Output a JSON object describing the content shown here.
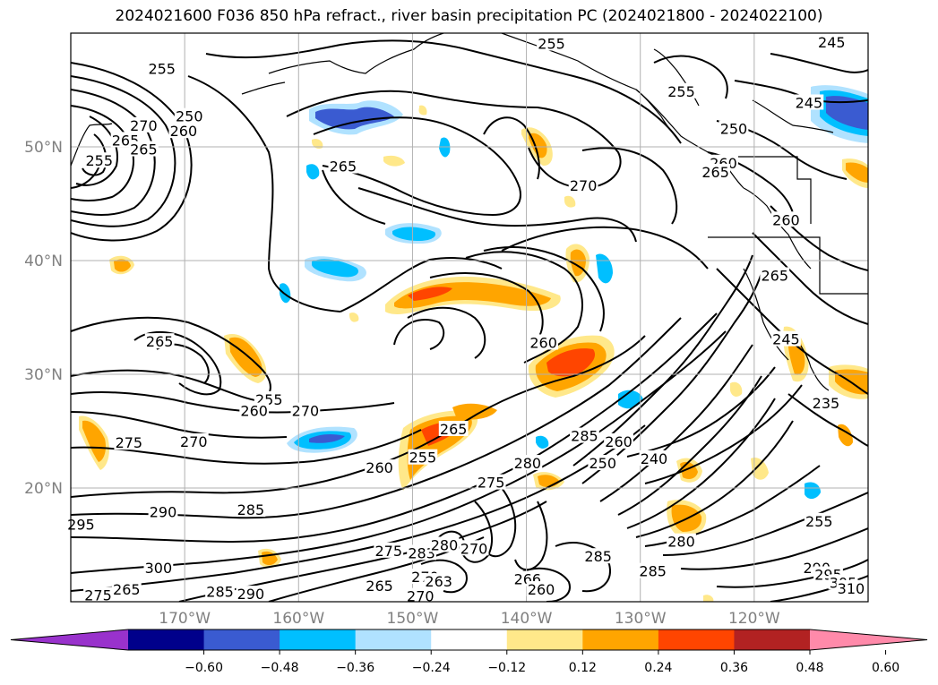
{
  "title": "2024021600 F036 850 hPa refract., river basin precipitation PC (2024021800 - 2024022100)",
  "map": {
    "lon_range": [
      -180,
      -110
    ],
    "lat_range": [
      10,
      60
    ],
    "lat_labels": [
      "50°N",
      "40°N",
      "30°N",
      "20°N"
    ],
    "lat_values": [
      50,
      40,
      30,
      20
    ],
    "lon_labels": [
      "170°W",
      "160°W",
      "150°W",
      "140°W",
      "130°W",
      "120°W"
    ],
    "lon_values": [
      -170,
      -160,
      -150,
      -140,
      -130,
      -120
    ],
    "grid": true
  },
  "contour_labels": [
    {
      "text": "255",
      "lon": -172,
      "lat": 56.9
    },
    {
      "text": "250",
      "lon": -169.6,
      "lat": 52.7
    },
    {
      "text": "270",
      "lon": -173.6,
      "lat": 51.9
    },
    {
      "text": "260",
      "lon": -170.1,
      "lat": 51.4
    },
    {
      "text": "265",
      "lon": -175.2,
      "lat": 50.6
    },
    {
      "text": "265",
      "lon": -173.6,
      "lat": 49.8
    },
    {
      "text": "255",
      "lon": -177.5,
      "lat": 48.8
    },
    {
      "text": "265",
      "lon": -156.1,
      "lat": 48.3
    },
    {
      "text": "270",
      "lon": -135,
      "lat": 46.6
    },
    {
      "text": "255",
      "lon": -137.8,
      "lat": 59.1
    },
    {
      "text": "255",
      "lon": -126.4,
      "lat": 54.9
    },
    {
      "text": "245",
      "lon": -113.2,
      "lat": 59.2
    },
    {
      "text": "245",
      "lon": -115.2,
      "lat": 53.9
    },
    {
      "text": "250",
      "lon": -121.8,
      "lat": 51.6
    },
    {
      "text": "260",
      "lon": -122.7,
      "lat": 48.6
    },
    {
      "text": "265",
      "lon": -123.4,
      "lat": 47.8
    },
    {
      "text": "260",
      "lon": -117.2,
      "lat": 43.6
    },
    {
      "text": "265",
      "lon": -118.2,
      "lat": 38.7
    },
    {
      "text": "245",
      "lon": -117.2,
      "lat": 33.1
    },
    {
      "text": "235",
      "lon": -113.7,
      "lat": 27.5
    },
    {
      "text": "265",
      "lon": -172.2,
      "lat": 32.9
    },
    {
      "text": "255",
      "lon": -162.6,
      "lat": 27.8
    },
    {
      "text": "260",
      "lon": -163.9,
      "lat": 26.8
    },
    {
      "text": "270",
      "lon": -159.4,
      "lat": 26.8
    },
    {
      "text": "275",
      "lon": -174.9,
      "lat": 24
    },
    {
      "text": "270",
      "lon": -169.2,
      "lat": 24.1
    },
    {
      "text": "260",
      "lon": -138.5,
      "lat": 32.8
    },
    {
      "text": "265",
      "lon": -146.4,
      "lat": 25.2
    },
    {
      "text": "255",
      "lon": -149.1,
      "lat": 22.7
    },
    {
      "text": "260",
      "lon": -152.9,
      "lat": 21.8
    },
    {
      "text": "285",
      "lon": -134.9,
      "lat": 24.6
    },
    {
      "text": "260",
      "lon": -131.9,
      "lat": 24.1
    },
    {
      "text": "250",
      "lon": -133.3,
      "lat": 22.2
    },
    {
      "text": "240",
      "lon": -128.8,
      "lat": 22.6
    },
    {
      "text": "280",
      "lon": -139.9,
      "lat": 22.2
    },
    {
      "text": "275",
      "lon": -143.1,
      "lat": 20.5
    },
    {
      "text": "290",
      "lon": -171.9,
      "lat": 17.9
    },
    {
      "text": "285",
      "lon": -164.2,
      "lat": 18.1
    },
    {
      "text": "295",
      "lon": -179.1,
      "lat": 16.8
    },
    {
      "text": "300",
      "lon": -172.3,
      "lat": 13
    },
    {
      "text": "275",
      "lon": -152.1,
      "lat": 14.5
    },
    {
      "text": "283",
      "lon": -149.2,
      "lat": 14.3
    },
    {
      "text": "280",
      "lon": -147.2,
      "lat": 15
    },
    {
      "text": "270",
      "lon": -144.6,
      "lat": 14.7
    },
    {
      "text": "270",
      "lon": -148.9,
      "lat": 12.2
    },
    {
      "text": "265",
      "lon": -152.9,
      "lat": 11.4
    },
    {
      "text": "263",
      "lon": -147.7,
      "lat": 11.8
    },
    {
      "text": "270",
      "lon": -149.3,
      "lat": 10.5
    },
    {
      "text": "275",
      "lon": -177.6,
      "lat": 10.6
    },
    {
      "text": "265",
      "lon": -175.1,
      "lat": 11.1
    },
    {
      "text": "285",
      "lon": -166.9,
      "lat": 10.9
    },
    {
      "text": "290",
      "lon": -164.2,
      "lat": 10.7
    },
    {
      "text": "266",
      "lon": -139.9,
      "lat": 12
    },
    {
      "text": "260",
      "lon": -138.7,
      "lat": 11.1
    },
    {
      "text": "285",
      "lon": -133.7,
      "lat": 14
    },
    {
      "text": "285",
      "lon": -128.9,
      "lat": 12.7
    },
    {
      "text": "280",
      "lon": -126.4,
      "lat": 15.3
    },
    {
      "text": "255",
      "lon": -114.3,
      "lat": 17.1
    },
    {
      "text": "290",
      "lon": -114.5,
      "lat": 13
    },
    {
      "text": "295",
      "lon": -113.5,
      "lat": 12.4
    },
    {
      "text": "305",
      "lon": -112.2,
      "lat": 11.7
    },
    {
      "text": "310",
      "lon": -111.5,
      "lat": 11.2
    }
  ],
  "colorbar": {
    "ticks": [
      "−0.60",
      "−0.48",
      "−0.36",
      "−0.24",
      "−0.12",
      "0.12",
      "0.24",
      "0.36",
      "0.48",
      "0.60"
    ],
    "colors": [
      "#9932cc",
      "#00008b",
      "#3a5bd1",
      "#00bfff",
      "#b0e2ff",
      "#ffffff",
      "#ffe88a",
      "#ffa500",
      "#ff4500",
      "#b22222",
      "#ff8aaa"
    ]
  }
}
